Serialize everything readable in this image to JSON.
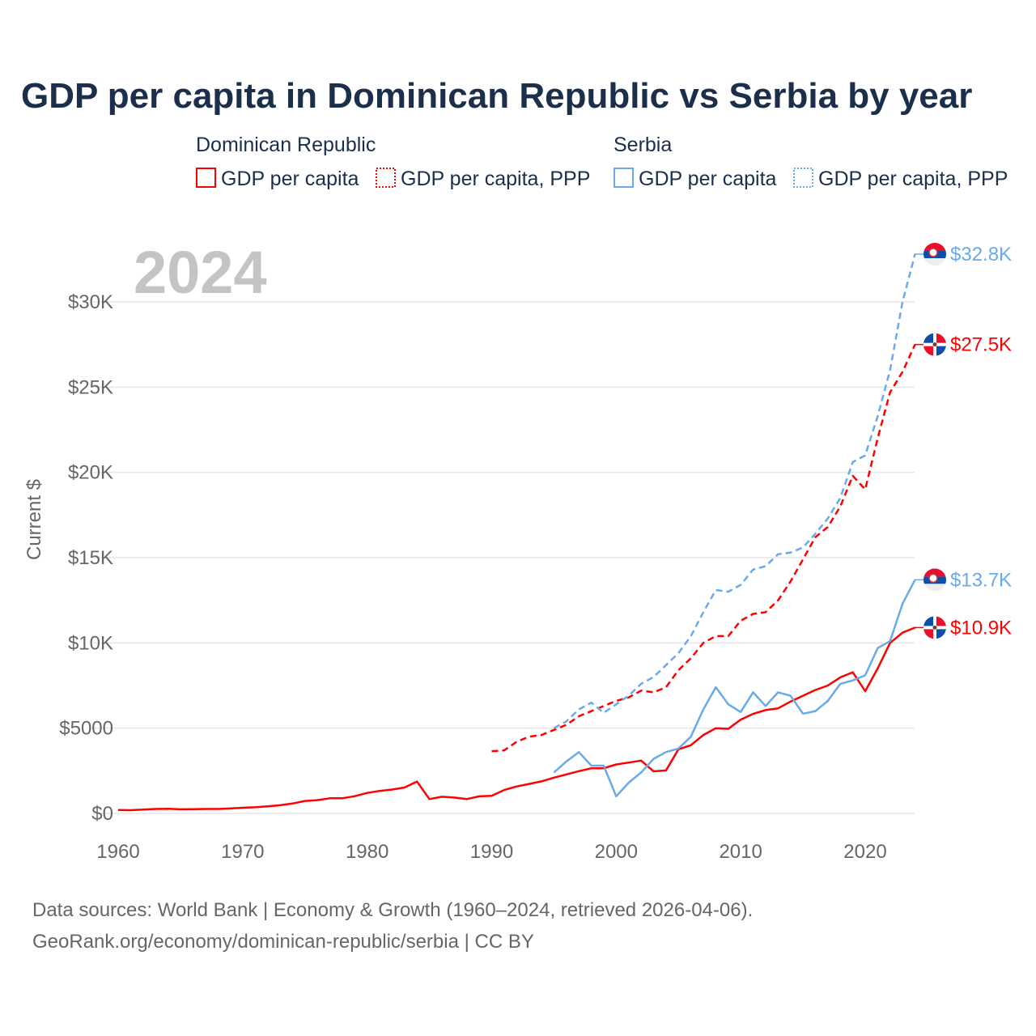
{
  "title": "GDP per capita in Dominican Republic vs Serbia by year",
  "legend": {
    "groups": [
      {
        "country": "Dominican Republic",
        "items": [
          "GDP per capita",
          "GDP per capita, PPP"
        ]
      },
      {
        "country": "Serbia",
        "items": [
          "GDP per capita",
          "GDP per capita, PPP"
        ]
      }
    ]
  },
  "year_label": "2024",
  "footer": {
    "line1": "Data sources: World Bank | Economy & Growth (1960–2024, retrieved 2026-04-06).",
    "line2": "GeoRank.org/economy/dominican-republic/serbia | CC BY"
  },
  "colors": {
    "dr": "#ff0000",
    "serbia": "#6aaae8"
  },
  "chart_data": {
    "type": "line",
    "title": "GDP per capita in Dominican Republic vs Serbia by year",
    "xlabel": "",
    "ylabel": "Current $",
    "xlim": [
      1960,
      2024
    ],
    "ylim": [
      0,
      33000
    ],
    "x_ticks": [
      1960,
      1970,
      1980,
      1990,
      2000,
      2010,
      2020
    ],
    "x_tick_labels": [
      "1960",
      "1970",
      "1980",
      "1990",
      "2000",
      "2010",
      "2020"
    ],
    "y_ticks": [
      0,
      5000,
      10000,
      15000,
      20000,
      25000,
      30000
    ],
    "y_tick_labels": [
      "$0",
      "$5000",
      "$10K",
      "$15K",
      "$20K",
      "$25K",
      "$30K"
    ],
    "grid": true,
    "legend_position": "top",
    "series": [
      {
        "name": "Dominican Republic — GDP per capita",
        "country": "dr",
        "dashed": false,
        "start": 1960,
        "end_label": "$10.9K",
        "values": [
          200,
          190,
          230,
          260,
          270,
          240,
          250,
          260,
          260,
          290,
          330,
          360,
          420,
          480,
          580,
          730,
          780,
          890,
          890,
          1010,
          1200,
          1320,
          1400,
          1520,
          1870,
          840,
          980,
          930,
          840,
          1000,
          1030,
          1370,
          1580,
          1730,
          1880,
          2100,
          2290,
          2480,
          2650,
          2650,
          2870,
          2980,
          3100,
          2470,
          2520,
          3760,
          4000,
          4600,
          5000,
          4960,
          5500,
          5840,
          6060,
          6160,
          6560,
          6900,
          7240,
          7500,
          7980,
          8280,
          7170,
          8500,
          10000,
          10600,
          10900
        ]
      },
      {
        "name": "Dominican Republic — GDP per capita, PPP",
        "country": "dr",
        "dashed": true,
        "start": 1990,
        "end_label": "$27.5K",
        "values": [
          3650,
          3700,
          4200,
          4500,
          4600,
          4900,
          5200,
          5700,
          6000,
          6300,
          6600,
          6800,
          7200,
          7100,
          7400,
          8400,
          9100,
          10000,
          10400,
          10400,
          11300,
          11700,
          11800,
          12500,
          13600,
          14900,
          16200,
          16800,
          18000,
          19800,
          19000,
          22000,
          24700,
          25900,
          27500
        ]
      },
      {
        "name": "Serbia — GDP per capita",
        "country": "serbia",
        "dashed": false,
        "start": 1995,
        "end_label": "$13.7K",
        "values": [
          2400,
          3050,
          3600,
          2800,
          2800,
          1000,
          1800,
          2400,
          3200,
          3600,
          3800,
          4500,
          6100,
          7400,
          6400,
          5950,
          7100,
          6300,
          7100,
          6900,
          5850,
          6000,
          6600,
          7600,
          7800,
          8100,
          9700,
          10100,
          12300,
          13700
        ]
      },
      {
        "name": "Serbia — GDP per capita, PPP",
        "country": "serbia",
        "dashed": true,
        "start": 1995,
        "end_label": "$32.8K",
        "values": [
          5000,
          5400,
          6100,
          6500,
          5900,
          6400,
          6900,
          7600,
          8000,
          8700,
          9400,
          10400,
          11800,
          13100,
          13000,
          13400,
          14300,
          14500,
          15200,
          15300,
          15600,
          16400,
          17300,
          18500,
          20600,
          21000,
          23300,
          26000,
          30000,
          32800
        ]
      }
    ]
  }
}
